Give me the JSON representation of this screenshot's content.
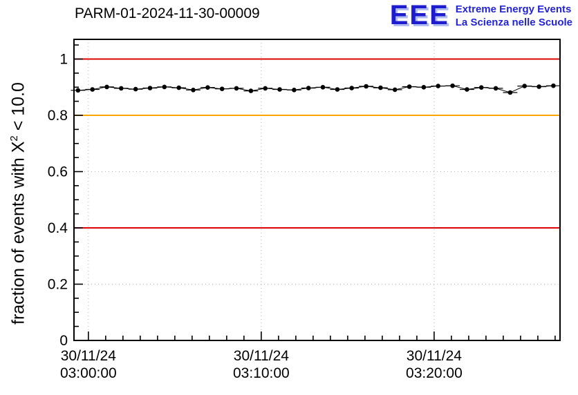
{
  "header": {
    "title": "PARM-01-2024-11-30-00009",
    "logo": {
      "text": "EEE",
      "line1": "Extreme Energy Events",
      "line2": "La Scienza nelle Scuole",
      "color": "#1d1dcf",
      "shadow_color": "#b2bdef"
    }
  },
  "y_axis_label": {
    "prefix": "fraction of events with X",
    "sup": "2",
    "suffix": " < 10.0"
  },
  "chart_data": {
    "type": "line",
    "title": "PARM-01-2024-11-30-00009",
    "xlabel": "",
    "ylabel": "fraction of events with X^2 < 10.0",
    "ylim": [
      0,
      1.07
    ],
    "xlim_seconds": [
      -50,
      1637
    ],
    "x_unit": "seconds relative to 30/11/24 03:00:00",
    "grid": true,
    "grid_color": "#b0b0b0",
    "y_ticks": [
      {
        "v": 0.0,
        "label": "0"
      },
      {
        "v": 0.2,
        "label": "0.2"
      },
      {
        "v": 0.4,
        "label": "0.4"
      },
      {
        "v": 0.6,
        "label": "0.6"
      },
      {
        "v": 0.8,
        "label": "0.8"
      },
      {
        "v": 1.0,
        "label": "1"
      }
    ],
    "x_ticks": [
      {
        "t": 0,
        "line1": "30/11/24",
        "line2": "03:00:00"
      },
      {
        "t": 600,
        "line1": "30/11/24",
        "line2": "03:10:00"
      },
      {
        "t": 1200,
        "line1": "30/11/24",
        "line2": "03:20:00"
      }
    ],
    "y_minor_step": 0.05,
    "x_minor_step_seconds": 60,
    "reference_lines": [
      {
        "value": 1.0,
        "color": "#dc0000",
        "name": "upper-red-limit"
      },
      {
        "value": 0.8,
        "color": "#ffa500",
        "name": "orange-warning-level"
      },
      {
        "value": 0.4,
        "color": "#dc0000",
        "name": "lower-red-limit"
      }
    ],
    "series": [
      {
        "name": "fraction of events with X^2 < 10.0",
        "color": "#000000",
        "marker": "circle",
        "x_err_halfwidth_seconds": 25,
        "y_err": 0.004,
        "points": [
          [
            -36,
            0.889
          ],
          [
            14,
            0.892
          ],
          [
            64,
            0.901
          ],
          [
            114,
            0.896
          ],
          [
            164,
            0.893
          ],
          [
            214,
            0.897
          ],
          [
            264,
            0.901
          ],
          [
            314,
            0.898
          ],
          [
            364,
            0.89
          ],
          [
            414,
            0.899
          ],
          [
            464,
            0.894
          ],
          [
            514,
            0.896
          ],
          [
            564,
            0.887
          ],
          [
            614,
            0.896
          ],
          [
            664,
            0.892
          ],
          [
            714,
            0.89
          ],
          [
            764,
            0.897
          ],
          [
            814,
            0.9
          ],
          [
            864,
            0.892
          ],
          [
            914,
            0.897
          ],
          [
            964,
            0.903
          ],
          [
            1014,
            0.898
          ],
          [
            1064,
            0.891
          ],
          [
            1114,
            0.902
          ],
          [
            1164,
            0.9
          ],
          [
            1214,
            0.904
          ],
          [
            1264,
            0.905
          ],
          [
            1314,
            0.892
          ],
          [
            1364,
            0.899
          ],
          [
            1414,
            0.896
          ],
          [
            1464,
            0.881
          ],
          [
            1514,
            0.904
          ],
          [
            1564,
            0.902
          ],
          [
            1614,
            0.905
          ]
        ]
      }
    ]
  }
}
